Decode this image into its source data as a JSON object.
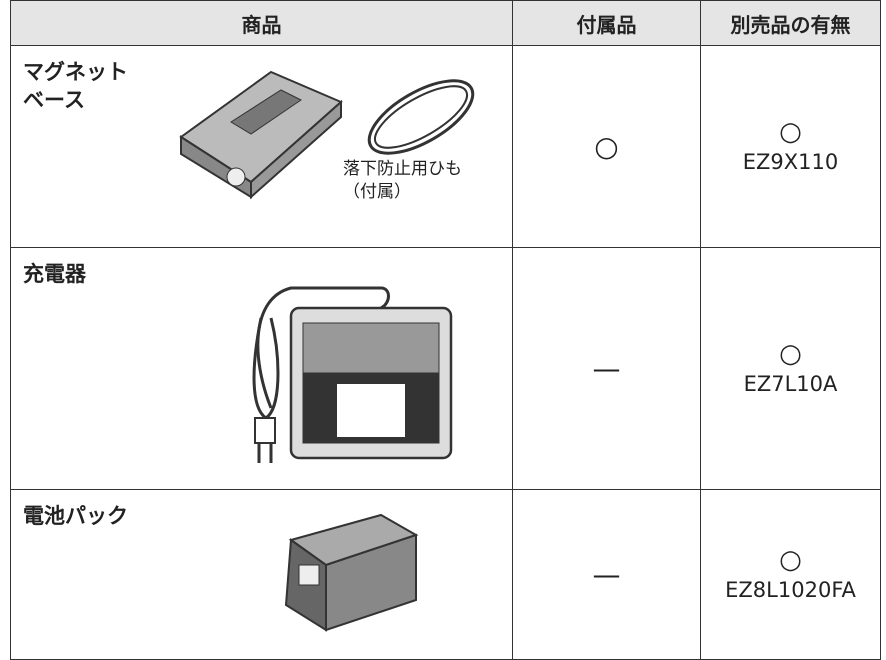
{
  "table": {
    "header": [
      "商品",
      "付属品",
      "別売品の有無"
    ],
    "rows": [
      {
        "product": [
          "マグネット",
          "ベース"
        ],
        "caption": [
          "落下防止用ひも",
          "（付属）"
        ],
        "included": "○",
        "separate": [
          "○",
          "EZ9X110"
        ]
      },
      {
        "product": [
          "充電器"
        ],
        "included": "—",
        "separate": [
          "○",
          "EZ7L10A"
        ]
      },
      {
        "product": [
          "電池パック"
        ],
        "included": "—",
        "separate": [
          "○",
          "EZ8L1020FA"
        ]
      }
    ]
  }
}
